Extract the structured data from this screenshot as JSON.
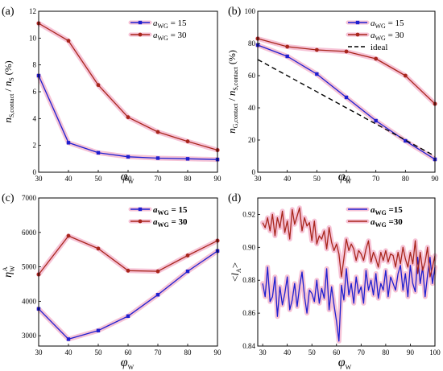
{
  "colors": {
    "blue": "#1f1fd0",
    "red": "#a8261c",
    "shadow": "#f5b8cf",
    "black": "#000000"
  },
  "chart_data": [
    {
      "type": "line",
      "panel_label": "(a)",
      "xlabel": "φ",
      "xlabel_sub": "W",
      "ylabel_parts": [
        "n",
        "S,contact",
        " / ",
        "n",
        "S",
        " (%)"
      ],
      "xlim": [
        30,
        90
      ],
      "ylim": [
        0,
        12
      ],
      "xticks": [
        30,
        40,
        50,
        60,
        70,
        80,
        90
      ],
      "yticks": [
        0,
        2,
        4,
        6,
        8,
        10,
        12
      ],
      "legend": "top-right",
      "legend_bold": false,
      "series": [
        {
          "name_base": "a",
          "name_sub": "WG",
          "name_rest": " = 15",
          "color": "#1f1fd0",
          "marker": "square",
          "x": [
            30,
            40,
            50,
            60,
            70,
            80,
            90
          ],
          "y": [
            7.2,
            2.2,
            1.45,
            1.15,
            1.05,
            1.0,
            0.95
          ]
        },
        {
          "name_base": "a",
          "name_sub": "WG",
          "name_rest": " = 30",
          "color": "#a8261c",
          "marker": "circle",
          "x": [
            30,
            40,
            50,
            60,
            70,
            80,
            90
          ],
          "y": [
            11.1,
            9.8,
            6.5,
            4.1,
            3.0,
            2.3,
            1.65
          ]
        }
      ]
    },
    {
      "type": "line",
      "panel_label": "(b)",
      "xlabel": "φ",
      "xlabel_sub": "W",
      "ylabel_parts": [
        "n",
        "G,contact",
        " / ",
        "n",
        "S,contact",
        " (%)"
      ],
      "xlim": [
        30,
        90
      ],
      "ylim": [
        0,
        100
      ],
      "xticks": [
        30,
        40,
        50,
        60,
        70,
        80,
        90
      ],
      "yticks": [
        0,
        20,
        40,
        60,
        80,
        100
      ],
      "legend": "top-right",
      "legend_bold": false,
      "series": [
        {
          "name_base": "a",
          "name_sub": "WG",
          "name_rest": " = 15",
          "color": "#1f1fd0",
          "marker": "square",
          "x": [
            30,
            40,
            50,
            60,
            70,
            80,
            90
          ],
          "y": [
            79,
            72,
            61,
            46.5,
            32,
            19.5,
            8
          ]
        },
        {
          "name_base": "a",
          "name_sub": "WG",
          "name_rest": " = 30",
          "color": "#a8261c",
          "marker": "circle",
          "x": [
            30,
            40,
            50,
            60,
            70,
            80,
            90
          ],
          "y": [
            83,
            78,
            76,
            75,
            70.5,
            60,
            42.5
          ]
        },
        {
          "name_base": "ideal",
          "name_sub": "",
          "name_rest": "",
          "color": "#000000",
          "marker": "none",
          "dashed": true,
          "x": [
            30,
            90
          ],
          "y": [
            70,
            10
          ]
        }
      ]
    },
    {
      "type": "line",
      "panel_label": "(c)",
      "xlabel": "φ",
      "xlabel_sub": "W",
      "ylabel_parts": [
        "η",
        "W",
        "A"
      ],
      "xlim": [
        30,
        90
      ],
      "ylim": [
        2700,
        7000
      ],
      "xticks": [
        30,
        40,
        50,
        60,
        70,
        80,
        90
      ],
      "yticks": [
        3000,
        4000,
        5000,
        6000,
        7000
      ],
      "legend": "top-right",
      "legend_bold": true,
      "series": [
        {
          "name_base": "a",
          "name_sub": "WG",
          "name_rest": " = 15",
          "color": "#1f1fd0",
          "marker": "square",
          "x": [
            30,
            40,
            50,
            60,
            70,
            80,
            90
          ],
          "y": [
            3780,
            2900,
            3150,
            3570,
            4190,
            4870,
            5460
          ]
        },
        {
          "name_base": "a",
          "name_sub": "WG",
          "name_rest": " = 30",
          "color": "#a8261c",
          "marker": "circle",
          "x": [
            30,
            40,
            50,
            60,
            70,
            80,
            90
          ],
          "y": [
            4780,
            5900,
            5530,
            4890,
            4870,
            5330,
            5760
          ]
        }
      ]
    },
    {
      "type": "line",
      "panel_label": "(d)",
      "xlabel": "φ",
      "xlabel_sub": "W",
      "ylabel_parts": [
        "<",
        "l",
        "A",
        ">"
      ],
      "xlim": [
        28,
        100
      ],
      "ylim": [
        0.84,
        0.93
      ],
      "xticks": [
        30,
        40,
        50,
        60,
        70,
        80,
        90,
        100
      ],
      "yticks": [
        0.84,
        0.86,
        0.88,
        0.9,
        0.92
      ],
      "legend": "top-right",
      "legend_bold": true,
      "series": [
        {
          "name_base": "a",
          "name_sub": "WG",
          "name_rest": " =15",
          "color": "#1f1fd0",
          "marker": "none",
          "x": [
            30,
            31,
            32,
            33,
            34,
            35,
            36,
            37,
            38,
            39,
            40,
            41,
            42,
            43,
            44,
            45,
            46,
            47,
            48,
            49,
            50,
            51,
            52,
            53,
            54,
            55,
            56,
            57,
            58,
            59,
            60,
            61,
            62,
            63,
            64,
            65,
            66,
            67,
            68,
            69,
            70,
            71,
            72,
            73,
            74,
            75,
            76,
            77,
            78,
            79,
            80,
            81,
            82,
            83,
            84,
            85,
            86,
            87,
            88,
            89,
            90,
            91,
            92,
            93,
            94,
            95,
            96,
            97,
            98,
            99,
            100
          ],
          "y": [
            0.878,
            0.87,
            0.888,
            0.867,
            0.87,
            0.882,
            0.858,
            0.876,
            0.865,
            0.872,
            0.882,
            0.862,
            0.868,
            0.878,
            0.864,
            0.876,
            0.885,
            0.87,
            0.86,
            0.874,
            0.872,
            0.867,
            0.88,
            0.866,
            0.875,
            0.869,
            0.887,
            0.862,
            0.876,
            0.865,
            0.855,
            0.843,
            0.877,
            0.868,
            0.887,
            0.871,
            0.878,
            0.866,
            0.882,
            0.872,
            0.876,
            0.866,
            0.886,
            0.874,
            0.88,
            0.871,
            0.884,
            0.869,
            0.878,
            0.874,
            0.886,
            0.87,
            0.882,
            0.878,
            0.874,
            0.884,
            0.889,
            0.874,
            0.884,
            0.87,
            0.889,
            0.878,
            0.873,
            0.894,
            0.878,
            0.888,
            0.87,
            0.883,
            0.894,
            0.878,
            0.888
          ]
        },
        {
          "name_base": "a",
          "name_sub": "WG",
          "name_rest": " =30",
          "color": "#a8261c",
          "marker": "none",
          "x": [
            30,
            31,
            32,
            33,
            34,
            35,
            36,
            37,
            38,
            39,
            40,
            41,
            42,
            43,
            44,
            45,
            46,
            47,
            48,
            49,
            50,
            51,
            52,
            53,
            54,
            55,
            56,
            57,
            58,
            59,
            60,
            61,
            62,
            63,
            64,
            65,
            66,
            67,
            68,
            69,
            70,
            71,
            72,
            73,
            74,
            75,
            76,
            77,
            78,
            79,
            80,
            81,
            82,
            83,
            84,
            85,
            86,
            87,
            88,
            89,
            90,
            91,
            92,
            93,
            94,
            95,
            96,
            97,
            98,
            99,
            100
          ],
          "y": [
            0.915,
            0.912,
            0.918,
            0.91,
            0.92,
            0.907,
            0.918,
            0.912,
            0.922,
            0.909,
            0.916,
            0.905,
            0.923,
            0.914,
            0.919,
            0.924,
            0.91,
            0.918,
            0.913,
            0.915,
            0.904,
            0.916,
            0.902,
            0.907,
            0.905,
            0.91,
            0.899,
            0.912,
            0.903,
            0.898,
            0.902,
            0.896,
            0.882,
            0.893,
            0.905,
            0.898,
            0.902,
            0.899,
            0.892,
            0.898,
            0.896,
            0.892,
            0.899,
            0.904,
            0.891,
            0.897,
            0.893,
            0.888,
            0.897,
            0.892,
            0.898,
            0.891,
            0.896,
            0.895,
            0.888,
            0.897,
            0.89,
            0.9,
            0.893,
            0.888,
            0.897,
            0.89,
            0.904,
            0.884,
            0.897,
            0.886,
            0.891,
            0.9,
            0.882,
            0.888,
            0.895
          ]
        }
      ]
    }
  ]
}
